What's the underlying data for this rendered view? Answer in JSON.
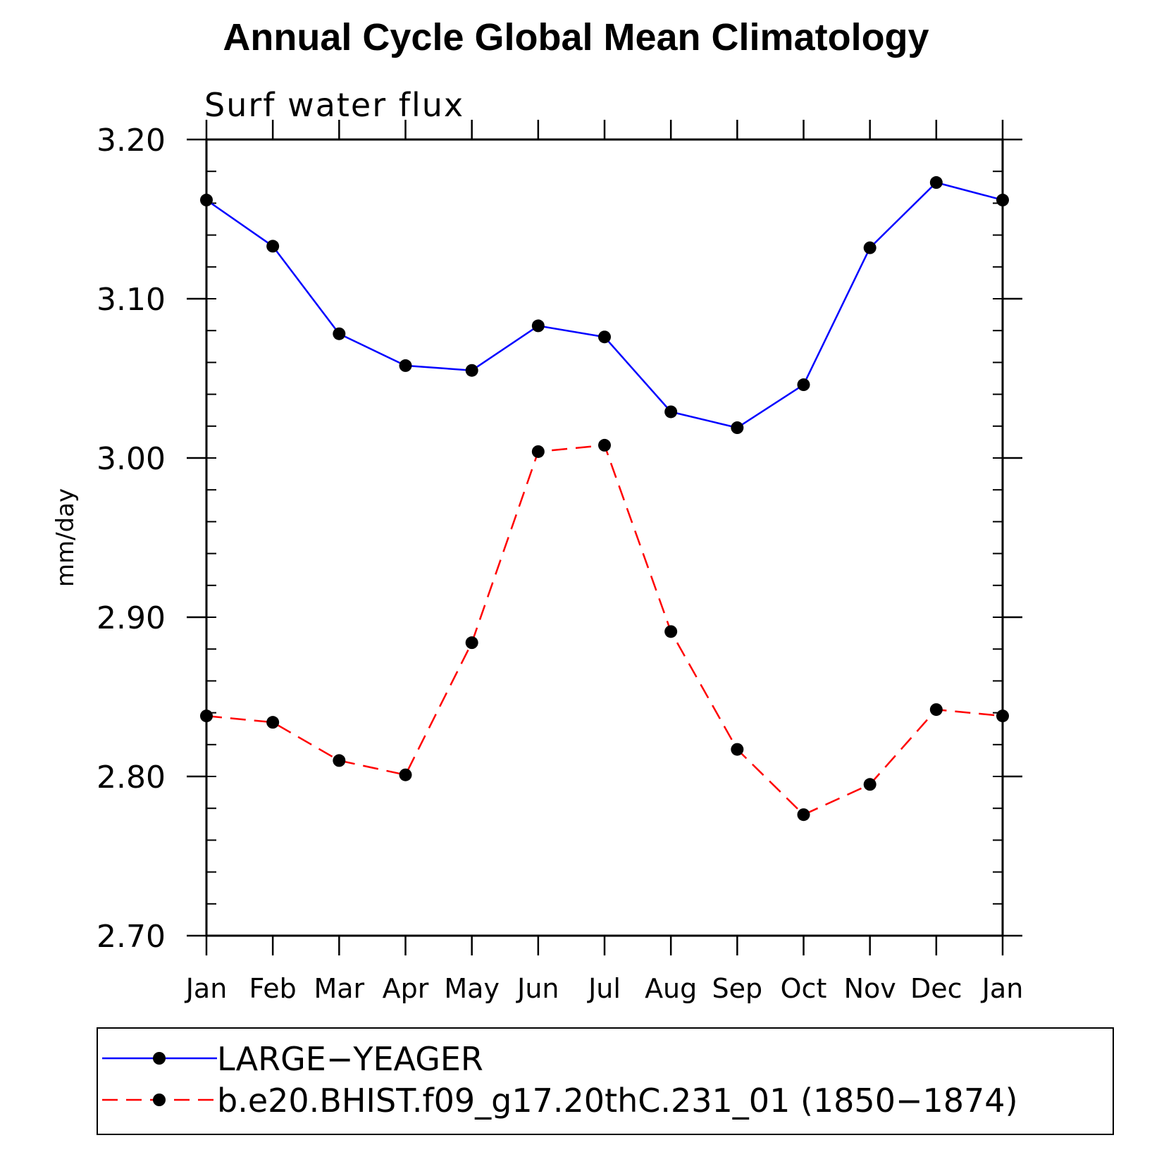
{
  "chart_data": {
    "type": "line",
    "title": "Annual Cycle Global Mean Climatology",
    "subtitle": "Surf water flux",
    "ylabel": "mm/day",
    "xlabel": "",
    "ylim": [
      2.7,
      3.2
    ],
    "y_ticks": [
      "3.20",
      "3.10",
      "3.00",
      "2.90",
      "2.80",
      "2.70"
    ],
    "y_tick_values": [
      3.2,
      3.1,
      3.0,
      2.9,
      2.8,
      2.7
    ],
    "categories": [
      "Jan",
      "Feb",
      "Mar",
      "Apr",
      "May",
      "Jun",
      "Jul",
      "Aug",
      "Sep",
      "Oct",
      "Nov",
      "Dec",
      "Jan"
    ],
    "series": [
      {
        "name": "LARGE−YEAGER",
        "color": "#0000ff",
        "dashed": false,
        "values": [
          3.162,
          3.133,
          3.078,
          3.058,
          3.055,
          3.083,
          3.076,
          3.029,
          3.019,
          3.046,
          3.132,
          3.173,
          3.162
        ]
      },
      {
        "name": "b.e20.BHIST.f09_g17.20thC.231_01 (1850−1874)",
        "color": "#ff0000",
        "dashed": true,
        "values": [
          2.838,
          2.834,
          2.81,
          2.801,
          2.884,
          3.004,
          3.008,
          2.891,
          2.817,
          2.776,
          2.795,
          2.842,
          2.838
        ]
      }
    ],
    "legend_position": "bottom",
    "grid": false
  }
}
